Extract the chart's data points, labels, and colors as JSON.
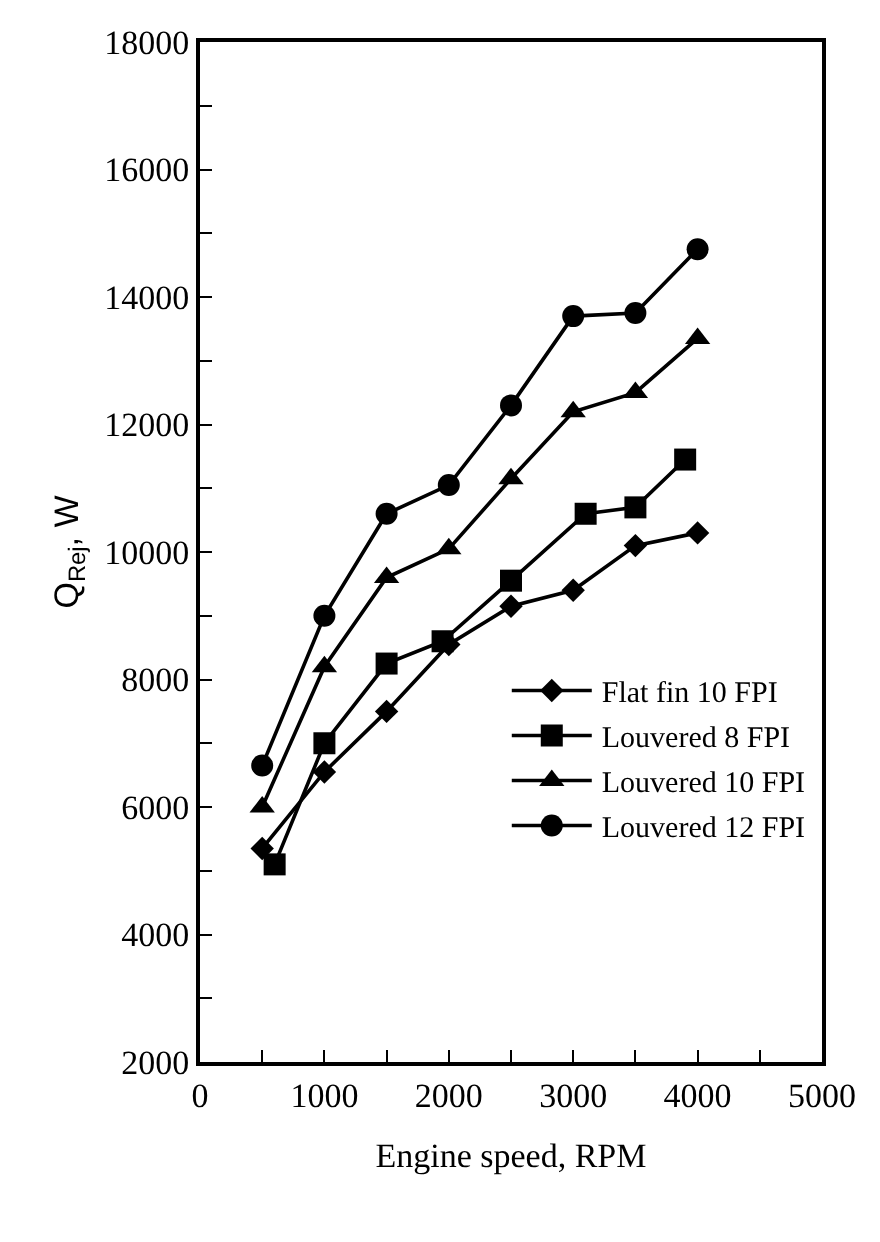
{
  "chart_data": {
    "type": "line",
    "xlabel": "Engine speed, RPM",
    "ylabel": "Q$_{Rej}$, W",
    "xlim": [
      0,
      5000
    ],
    "ylim": [
      2000,
      18000
    ],
    "xticks": [
      0,
      {
        "value": 500,
        "label": null
      },
      1000,
      {
        "value": 1500,
        "label": null
      },
      2000,
      {
        "value": 2500,
        "label": null
      },
      3000,
      {
        "value": 3500,
        "label": null
      },
      4000,
      {
        "value": 4500,
        "label": null
      },
      5000
    ],
    "yticks": [
      2000,
      {
        "value": 3000,
        "label": null
      },
      4000,
      {
        "value": 5000,
        "label": null
      },
      6000,
      {
        "value": 7000,
        "label": null
      },
      8000,
      {
        "value": 9000,
        "label": null
      },
      10000,
      {
        "value": 11000,
        "label": null
      },
      12000,
      {
        "value": 13000,
        "label": null
      },
      14000,
      {
        "value": 15000,
        "label": null
      },
      16000,
      {
        "value": 17000,
        "label": null
      },
      18000
    ],
    "legend": "bottom right",
    "line_style": "solid",
    "series": [
      {
        "name": "Flat fin 10 FPI",
        "color": "#000000",
        "marker": "diamond",
        "x": [
          500,
          1000,
          1500,
          2000,
          2500,
          3000,
          3500,
          4000
        ],
        "values": [
          5350,
          6550,
          7500,
          8550,
          9150,
          9400,
          10100,
          10300
        ]
      },
      {
        "name": "Louvered 8 FPI",
        "color": "#000000",
        "marker": "square",
        "x": [
          600,
          1000,
          1500,
          1950,
          2500,
          3100,
          3500,
          3900
        ],
        "values": [
          5100,
          7000,
          8250,
          8600,
          9550,
          10600,
          10700,
          11450
        ]
      },
      {
        "name": "Louvered 10 FPI",
        "color": "#000000",
        "marker": "triangle",
        "x": [
          500,
          1000,
          1500,
          2000,
          2500,
          3000,
          3500,
          4000
        ],
        "values": [
          6000,
          8200,
          9600,
          10050,
          11150,
          12200,
          12500,
          13350
        ]
      },
      {
        "name": "Louvered 12 FPI",
        "color": "#000000",
        "marker": "circle",
        "x": [
          500,
          1000,
          1500,
          2000,
          2500,
          3000,
          3500,
          4000
        ],
        "values": [
          6650,
          9000,
          10600,
          11050,
          12300,
          13700,
          13750,
          14750
        ]
      }
    ]
  }
}
